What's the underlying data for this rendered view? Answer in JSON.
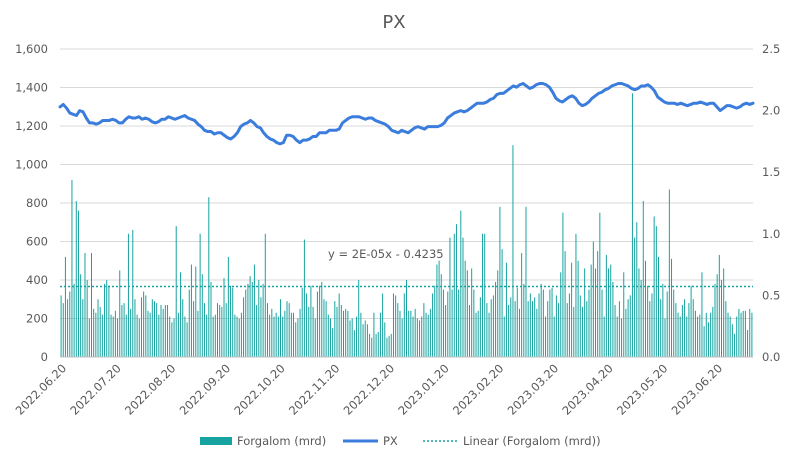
{
  "chart_data": {
    "type": "bar",
    "title": "PX",
    "left_axis": {
      "ylim": [
        0,
        1600
      ],
      "ticks": [
        "0",
        "200",
        "400",
        "600",
        "800",
        "1,000",
        "1,200",
        "1,400",
        "1,600"
      ]
    },
    "right_axis": {
      "ylim": [
        0,
        2.5
      ],
      "ticks": [
        "0.0",
        "0.5",
        "1.0",
        "1.5",
        "2.0",
        "2.5"
      ]
    },
    "x_tick_labels": [
      "2022.06.20",
      "2022.07.20",
      "2022.08.20",
      "2022.09.20",
      "2022.10.20",
      "2022.11.20",
      "2022.12.20",
      "2023.01.20",
      "2023.02.20",
      "2023.03.20",
      "2023.04.20",
      "2023.05.20",
      "2023.06.20"
    ],
    "grid": true,
    "legend_position": "bottom",
    "trendline_label": "y = 2E-05x - 0.4235",
    "series": [
      {
        "name": "Forgalom (mrd)",
        "type": "bar",
        "axis": "left",
        "color": "#17a3a0",
        "values": [
          320,
          280,
          520,
          300,
          340,
          920,
          380,
          810,
          760,
          430,
          300,
          540,
          400,
          200,
          540,
          250,
          230,
          300,
          260,
          220,
          380,
          400,
          370,
          220,
          210,
          240,
          200,
          450,
          270,
          280,
          220,
          640,
          250,
          660,
          300,
          220,
          200,
          310,
          340,
          320,
          240,
          230,
          300,
          290,
          280,
          220,
          270,
          250,
          270,
          270,
          210,
          180,
          200,
          680,
          230,
          440,
          300,
          210,
          180,
          350,
          480,
          290,
          470,
          240,
          640,
          430,
          280,
          220,
          830,
          390,
          210,
          220,
          280,
          270,
          260,
          410,
          280,
          520,
          370,
          360,
          220,
          210,
          200,
          230,
          310,
          350,
          380,
          420,
          390,
          480,
          270,
          400,
          310,
          380,
          640,
          280,
          220,
          250,
          210,
          230,
          210,
          300,
          210,
          240,
          290,
          280,
          230,
          230,
          180,
          200,
          250,
          360,
          610,
          330,
          260,
          370,
          260,
          200,
          340,
          370,
          390,
          300,
          290,
          220,
          200,
          150,
          290,
          260,
          330,
          270,
          240,
          250,
          240,
          190,
          200,
          140,
          210,
          400,
          230,
          170,
          190,
          170,
          120,
          100,
          230,
          120,
          130,
          230,
          330,
          180,
          100,
          110,
          120,
          330,
          320,
          280,
          240,
          200,
          330,
          400,
          240,
          240,
          210,
          250,
          200,
          190,
          210,
          280,
          230,
          220,
          250,
          330,
          370,
          480,
          500,
          430,
          350,
          270,
          340,
          620,
          350,
          640,
          690,
          350,
          760,
          620,
          500,
          450,
          270,
          460,
          350,
          230,
          240,
          310,
          640,
          640,
          280,
          230,
          300,
          320,
          390,
          450,
          780,
          560,
          210,
          490,
          270,
          310,
          1100,
          290,
          360,
          250,
          540,
          380,
          780,
          290,
          330,
          290,
          310,
          250,
          330,
          380,
          350,
          210,
          290,
          350,
          360,
          210,
          320,
          280,
          440,
          750,
          550,
          280,
          330,
          490,
          260,
          640,
          500,
          320,
          260,
          460,
          290,
          350,
          480,
          600,
          460,
          550,
          750,
          350,
          210,
          530,
          460,
          480,
          390,
          270,
          210,
          290,
          200,
          440,
          250,
          300,
          320,
          1370,
          620,
          700,
          460,
          400,
          810,
          500,
          370,
          290,
          330,
          730,
          680,
          520,
          300,
          380,
          200,
          340,
          870,
          510,
          350,
          280,
          230,
          210,
          270,
          300,
          210,
          280,
          370,
          300,
          240,
          210,
          220,
          440,
          160,
          230,
          180,
          230,
          260,
          380,
          430,
          530,
          400,
          460,
          290,
          230,
          210,
          170,
          120,
          210,
          250,
          230,
          240,
          240,
          140,
          250,
          230
        ]
      },
      {
        "name": "PX",
        "type": "line",
        "axis": "right",
        "color": "#3b7ddd",
        "values": [
          2.03,
          2.05,
          2.02,
          1.98,
          1.97,
          1.96,
          2.0,
          1.99,
          1.94,
          1.9,
          1.9,
          1.89,
          1.9,
          1.92,
          1.92,
          1.92,
          1.93,
          1.92,
          1.9,
          1.9,
          1.93,
          1.95,
          1.94,
          1.94,
          1.95,
          1.93,
          1.94,
          1.93,
          1.91,
          1.9,
          1.91,
          1.93,
          1.93,
          1.95,
          1.94,
          1.93,
          1.94,
          1.95,
          1.96,
          1.94,
          1.93,
          1.92,
          1.89,
          1.87,
          1.84,
          1.83,
          1.83,
          1.81,
          1.82,
          1.82,
          1.8,
          1.78,
          1.77,
          1.79,
          1.82,
          1.87,
          1.89,
          1.9,
          1.92,
          1.9,
          1.87,
          1.86,
          1.82,
          1.79,
          1.77,
          1.76,
          1.74,
          1.73,
          1.74,
          1.8,
          1.8,
          1.79,
          1.76,
          1.74,
          1.76,
          1.76,
          1.77,
          1.79,
          1.79,
          1.82,
          1.82,
          1.82,
          1.84,
          1.84,
          1.84,
          1.85,
          1.9,
          1.92,
          1.94,
          1.95,
          1.95,
          1.95,
          1.94,
          1.93,
          1.94,
          1.94,
          1.92,
          1.91,
          1.9,
          1.89,
          1.87,
          1.84,
          1.83,
          1.82,
          1.84,
          1.83,
          1.82,
          1.84,
          1.86,
          1.87,
          1.86,
          1.85,
          1.87,
          1.87,
          1.87,
          1.87,
          1.88,
          1.9,
          1.94,
          1.96,
          1.98,
          1.99,
          2.0,
          1.99,
          2.0,
          2.02,
          2.04,
          2.06,
          2.06,
          2.06,
          2.07,
          2.09,
          2.1,
          2.13,
          2.14,
          2.14,
          2.16,
          2.18,
          2.2,
          2.19,
          2.21,
          2.22,
          2.2,
          2.18,
          2.19,
          2.21,
          2.22,
          2.22,
          2.21,
          2.19,
          2.15,
          2.1,
          2.08,
          2.07,
          2.09,
          2.11,
          2.12,
          2.1,
          2.06,
          2.04,
          2.05,
          2.07,
          2.1,
          2.12,
          2.14,
          2.15,
          2.17,
          2.18,
          2.2,
          2.21,
          2.22,
          2.22,
          2.21,
          2.2,
          2.18,
          2.17,
          2.18,
          2.2,
          2.2,
          2.21,
          2.19,
          2.16,
          2.11,
          2.09,
          2.07,
          2.06,
          2.06,
          2.06,
          2.05,
          2.06,
          2.05,
          2.04,
          2.05,
          2.06,
          2.06,
          2.07,
          2.06,
          2.05,
          2.06,
          2.06,
          2.03,
          2.0,
          2.02,
          2.04,
          2.04,
          2.03,
          2.02,
          2.03,
          2.05,
          2.06,
          2.05,
          2.06
        ]
      },
      {
        "name": "Linear (Forgalom (mrd))",
        "type": "trendline",
        "axis": "left",
        "color": "#17a3a0",
        "values": [
          366,
          366
        ]
      }
    ]
  },
  "legend": {
    "items": [
      {
        "label": "Forgalom (mrd)",
        "color": "#17a3a0"
      },
      {
        "label": "PX",
        "color": "#3b7ddd"
      },
      {
        "label": "Linear (Forgalom (mrd))",
        "color": "#17a3a0"
      }
    ]
  }
}
